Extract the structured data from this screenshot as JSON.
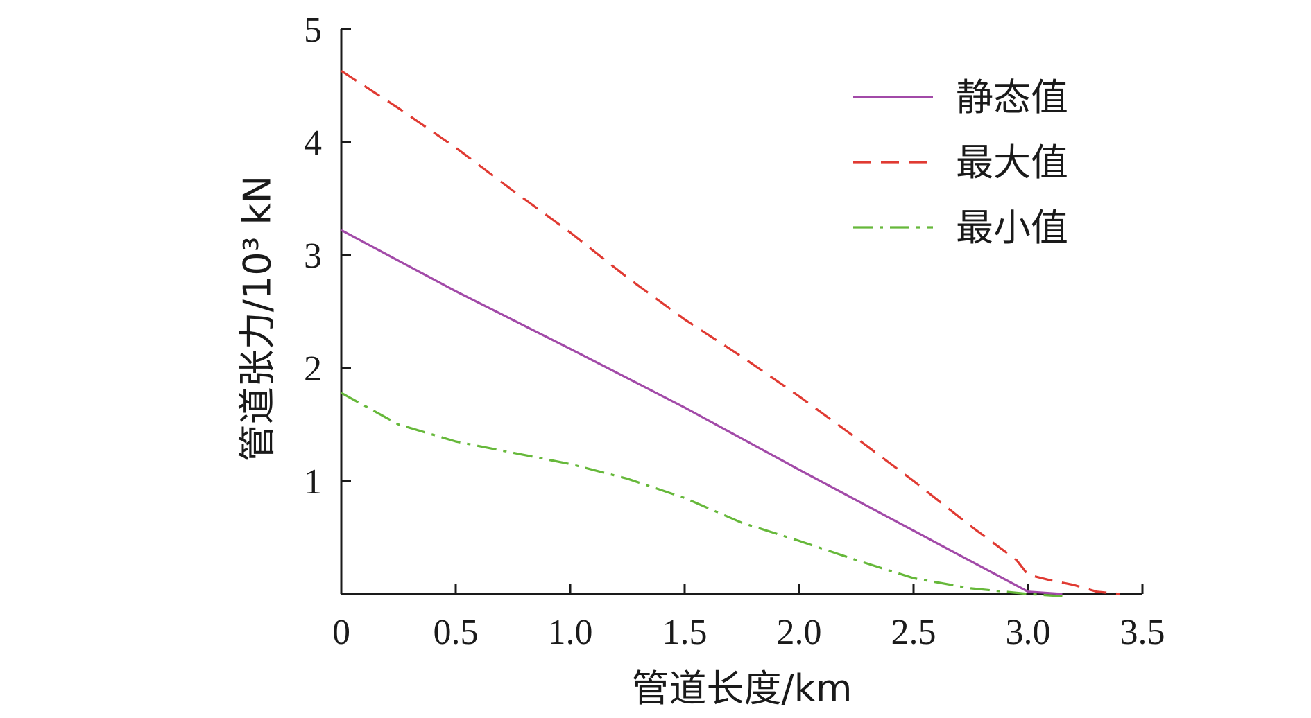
{
  "chart_data": {
    "type": "line",
    "title": "",
    "xlabel": "管道长度/km",
    "ylabel": "管道张力/10³ kN",
    "xlim": [
      0,
      3.5
    ],
    "ylim": [
      0,
      5
    ],
    "x_ticks": [
      "0",
      "0.5",
      "1.0",
      "1.5",
      "2.0",
      "2.5",
      "3.0",
      "3.5"
    ],
    "y_ticks": [
      "1",
      "2",
      "3",
      "4",
      "5"
    ],
    "grid": false,
    "legend_position": "top-right",
    "series": [
      {
        "name": "静态值",
        "color": "#a24aa8",
        "style": "solid",
        "x": [
          0,
          0.5,
          1.0,
          1.5,
          2.0,
          2.5,
          3.0,
          3.15
        ],
        "y": [
          3.22,
          2.68,
          2.17,
          1.65,
          1.1,
          0.56,
          0.02,
          0.0
        ]
      },
      {
        "name": "最大值",
        "color": "#e03a32",
        "style": "dashed",
        "x": [
          0,
          0.25,
          0.5,
          0.75,
          1.0,
          1.25,
          1.5,
          1.75,
          2.0,
          2.25,
          2.5,
          2.75,
          2.95,
          3.0,
          3.1,
          3.2,
          3.3,
          3.4
        ],
        "y": [
          4.63,
          4.3,
          3.95,
          3.57,
          3.2,
          2.8,
          2.43,
          2.1,
          1.75,
          1.38,
          1.0,
          0.6,
          0.3,
          0.17,
          0.12,
          0.08,
          0.02,
          0.0
        ]
      },
      {
        "name": "最小值",
        "color": "#66b83a",
        "style": "dashdot",
        "x": [
          0,
          0.25,
          0.5,
          0.75,
          1.0,
          1.25,
          1.5,
          1.75,
          2.0,
          2.25,
          2.5,
          2.75,
          3.0,
          3.15
        ],
        "y": [
          1.78,
          1.5,
          1.35,
          1.25,
          1.15,
          1.02,
          0.85,
          0.63,
          0.47,
          0.3,
          0.14,
          0.05,
          0.0,
          -0.02
        ]
      }
    ]
  }
}
